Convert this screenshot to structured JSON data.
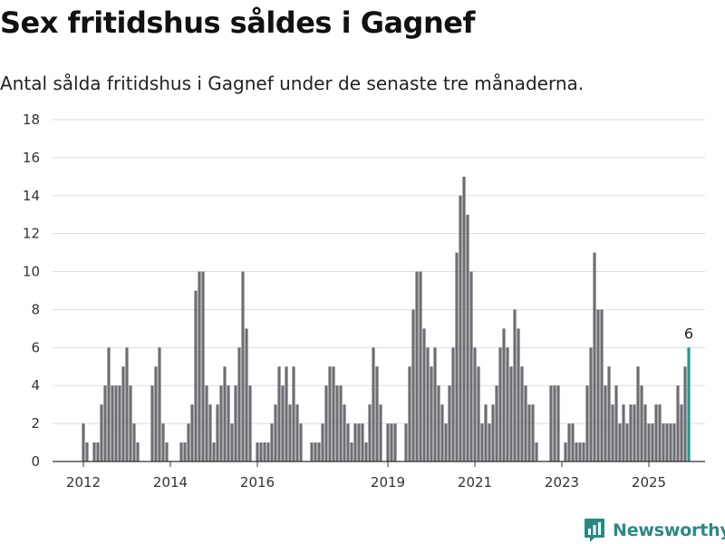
{
  "header": {
    "title": "Sex fritidshus såldes i Gagnef",
    "subtitle": "Antal sålda fritidshus i Gagnef under de senaste tre månaderna."
  },
  "brand": {
    "name": "Newsworthy",
    "color": "#2a8a83"
  },
  "colors": {
    "bar": "#6e6d73",
    "highlight": "#1f9a8e",
    "grid": "#dddddd",
    "axis": "#333333"
  },
  "chart_data": {
    "type": "bar",
    "title": "Sex fritidshus såldes i Gagnef",
    "subtitle": "Antal sålda fritidshus i Gagnef under de senaste tre månaderna.",
    "xlabel": "",
    "ylabel": "",
    "ylim": [
      0,
      18
    ],
    "yticks": [
      0,
      2,
      4,
      6,
      8,
      10,
      12,
      14,
      16,
      18
    ],
    "xticks": [
      "2012",
      "2014",
      "2016",
      "2019",
      "2021",
      "2023",
      "2025"
    ],
    "grid": true,
    "legend": "none",
    "highlight_label": "6",
    "values": [
      2,
      1,
      0,
      1,
      1,
      3,
      4,
      6,
      4,
      4,
      4,
      5,
      6,
      4,
      2,
      1,
      0,
      0,
      0,
      4,
      5,
      6,
      2,
      1,
      0,
      0,
      0,
      1,
      1,
      2,
      3,
      9,
      10,
      10,
      4,
      3,
      1,
      3,
      4,
      5,
      4,
      2,
      4,
      6,
      10,
      7,
      4,
      0,
      1,
      1,
      1,
      1,
      2,
      3,
      5,
      4,
      5,
      3,
      5,
      3,
      2,
      0,
      0,
      1,
      1,
      1,
      2,
      4,
      5,
      5,
      4,
      4,
      3,
      2,
      1,
      2,
      2,
      2,
      1,
      3,
      6,
      5,
      3,
      0,
      2,
      2,
      2,
      0,
      0,
      2,
      5,
      8,
      10,
      10,
      7,
      6,
      5,
      6,
      4,
      3,
      2,
      4,
      6,
      11,
      14,
      15,
      13,
      10,
      6,
      5,
      2,
      3,
      2,
      3,
      4,
      6,
      7,
      6,
      5,
      8,
      7,
      5,
      4,
      3,
      3,
      1,
      0,
      0,
      0,
      4,
      4,
      4,
      0,
      1,
      2,
      2,
      1,
      1,
      1,
      4,
      6,
      11,
      8,
      8,
      4,
      5,
      3,
      4,
      2,
      3,
      2,
      3,
      3,
      5,
      4,
      3,
      2,
      2,
      3,
      3,
      2,
      2,
      2,
      2,
      4,
      3,
      5,
      6
    ]
  }
}
